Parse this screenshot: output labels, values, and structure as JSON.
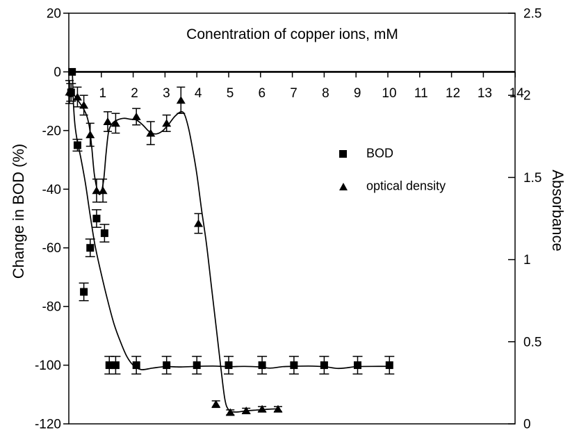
{
  "chart_data": {
    "type": "scatter",
    "title": "Conentration of copper ions, mM",
    "x_axis": {
      "range": [
        0,
        14
      ],
      "ticks": [
        0,
        1,
        2,
        3,
        4,
        5,
        6,
        7,
        8,
        9,
        10,
        11,
        12,
        13,
        14
      ]
    },
    "left_axis": {
      "label": "Change in BOD (%)",
      "range": [
        -120,
        20
      ],
      "ticks": [
        20,
        0,
        -20,
        -40,
        -60,
        -80,
        -100,
        -120
      ]
    },
    "right_axis": {
      "label": "Absorbance",
      "range": [
        0,
        2.5
      ],
      "ticks": [
        "2.5",
        "2",
        "1.5",
        "1",
        "0.5",
        "0"
      ]
    },
    "grid": false,
    "legend": {
      "position": "center-right",
      "items": [
        {
          "label": "BOD",
          "marker": "square"
        },
        {
          "label": "optical density",
          "marker": "triangle"
        }
      ]
    },
    "colors": {
      "foreground": "#000000",
      "background": "#ffffff"
    },
    "series": [
      {
        "name": "BOD",
        "marker": "square",
        "axis": "left",
        "points_xye": [
          [
            0.08,
            0,
            0
          ],
          [
            0.05,
            -7,
            3
          ],
          [
            0.25,
            -25,
            2
          ],
          [
            0.45,
            -75,
            3
          ],
          [
            0.65,
            -60,
            3
          ],
          [
            0.85,
            -50,
            3
          ],
          [
            1.1,
            -55,
            3
          ],
          [
            1.25,
            -100,
            3
          ],
          [
            1.45,
            -100,
            3
          ],
          [
            2.1,
            -100,
            3
          ],
          [
            3.05,
            -100,
            3
          ],
          [
            4.0,
            -100,
            3
          ],
          [
            5.0,
            -100,
            3
          ],
          [
            6.05,
            -100,
            3
          ],
          [
            7.05,
            -100,
            3
          ],
          [
            8.0,
            -100,
            3
          ],
          [
            9.05,
            -100,
            3
          ],
          [
            10.05,
            -100,
            3
          ]
        ]
      },
      {
        "name": "optical density",
        "marker": "triangle",
        "axis": "right",
        "points_xye": [
          [
            0.0,
            2.02,
            0.07
          ],
          [
            0.25,
            1.99,
            0.06
          ],
          [
            0.45,
            1.94,
            0.06
          ],
          [
            0.65,
            1.76,
            0.07
          ],
          [
            0.85,
            1.42,
            0.07
          ],
          [
            1.05,
            1.42,
            0.07
          ],
          [
            1.2,
            1.84,
            0.06
          ],
          [
            1.45,
            1.83,
            0.06
          ],
          [
            2.1,
            1.87,
            0.05
          ],
          [
            2.55,
            1.77,
            0.07
          ],
          [
            3.05,
            1.83,
            0.05
          ],
          [
            3.5,
            1.97,
            0.08
          ],
          [
            4.05,
            1.22,
            0.06
          ],
          [
            4.6,
            0.12,
            0.02
          ],
          [
            5.05,
            0.07,
            0.015
          ],
          [
            5.55,
            0.08,
            0.015
          ],
          [
            6.05,
            0.09,
            0.015
          ],
          [
            6.55,
            0.09,
            0.015
          ]
        ]
      }
    ],
    "fit_curves": [
      {
        "series": "BOD",
        "axis": "left",
        "points": [
          [
            0.09,
            0
          ],
          [
            0.12,
            -10
          ],
          [
            0.17,
            -18
          ],
          [
            0.25,
            -24
          ],
          [
            0.35,
            -29
          ],
          [
            0.5,
            -38
          ],
          [
            0.65,
            -49
          ],
          [
            0.8,
            -59
          ],
          [
            1.0,
            -69
          ],
          [
            1.2,
            -78
          ],
          [
            1.4,
            -86
          ],
          [
            1.6,
            -92
          ],
          [
            1.8,
            -97
          ],
          [
            2.0,
            -100
          ],
          [
            2.25,
            -101.5
          ],
          [
            2.6,
            -101
          ],
          [
            3.0,
            -100.5
          ],
          [
            3.5,
            -100.6
          ],
          [
            4.0,
            -100.4
          ],
          [
            4.5,
            -100.3
          ],
          [
            5.0,
            -100.5
          ],
          [
            5.5,
            -100.4
          ],
          [
            6.0,
            -100.6
          ],
          [
            6.3,
            -101
          ],
          [
            6.7,
            -100.5
          ],
          [
            7.0,
            -100.4
          ],
          [
            7.5,
            -100.3
          ],
          [
            8.0,
            -100.5
          ],
          [
            8.4,
            -101.1
          ],
          [
            8.7,
            -100.9
          ],
          [
            9.0,
            -100.5
          ],
          [
            9.5,
            -100.4
          ],
          [
            10.05,
            -100.4
          ]
        ]
      },
      {
        "series": "optical density",
        "axis": "right",
        "points": [
          [
            0.0,
            2.02
          ],
          [
            0.15,
            2.0
          ],
          [
            0.3,
            1.96
          ],
          [
            0.45,
            1.915
          ],
          [
            0.55,
            1.87
          ],
          [
            0.63,
            1.8
          ],
          [
            0.7,
            1.68
          ],
          [
            0.78,
            1.52
          ],
          [
            0.88,
            1.42
          ],
          [
            0.97,
            1.4
          ],
          [
            1.07,
            1.48
          ],
          [
            1.15,
            1.65
          ],
          [
            1.23,
            1.78
          ],
          [
            1.35,
            1.83
          ],
          [
            1.5,
            1.85
          ],
          [
            1.7,
            1.86
          ],
          [
            1.9,
            1.855
          ],
          [
            2.1,
            1.85
          ],
          [
            2.3,
            1.82
          ],
          [
            2.5,
            1.78
          ],
          [
            2.7,
            1.765
          ],
          [
            2.9,
            1.78
          ],
          [
            3.1,
            1.82
          ],
          [
            3.3,
            1.87
          ],
          [
            3.5,
            1.9
          ],
          [
            3.62,
            1.88
          ],
          [
            3.75,
            1.79
          ],
          [
            3.88,
            1.66
          ],
          [
            4.0,
            1.52
          ],
          [
            4.15,
            1.3
          ],
          [
            4.3,
            1.1
          ],
          [
            4.45,
            0.85
          ],
          [
            4.6,
            0.6
          ],
          [
            4.75,
            0.35
          ],
          [
            4.88,
            0.15
          ],
          [
            5.0,
            0.085
          ],
          [
            5.2,
            0.072
          ],
          [
            5.5,
            0.078
          ],
          [
            5.8,
            0.083
          ],
          [
            6.1,
            0.087
          ],
          [
            6.35,
            0.09
          ],
          [
            6.6,
            0.092
          ]
        ]
      }
    ]
  }
}
